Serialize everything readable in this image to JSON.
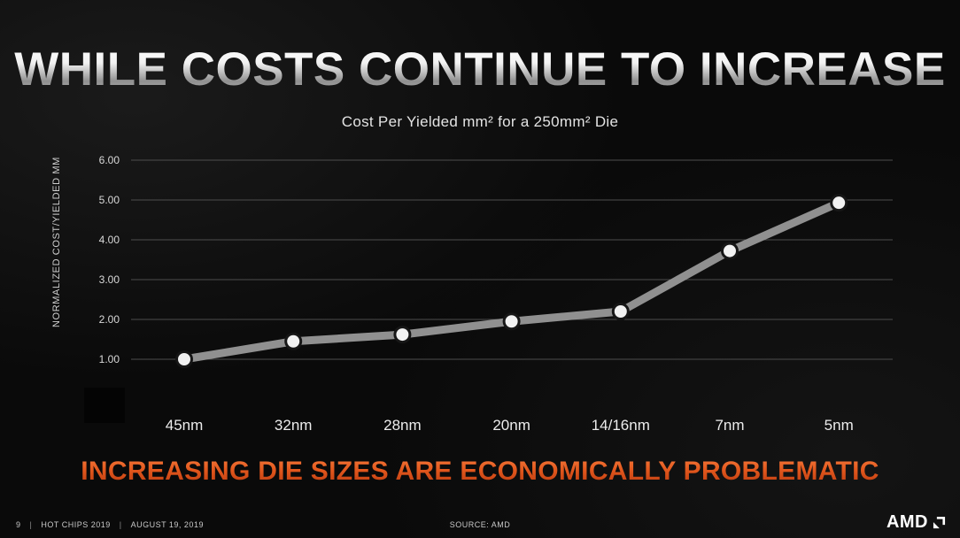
{
  "slide": {
    "title": "WHILE COSTS CONTINUE TO INCREASE",
    "tagline": "INCREASING DIE SIZES ARE ECONOMICALLY PROBLEMATIC"
  },
  "chart_data": {
    "type": "line",
    "title": "Cost Per Yielded mm² for a 250mm² Die",
    "categories": [
      "45nm",
      "32nm",
      "28nm",
      "20nm",
      "14/16nm",
      "7nm",
      "5nm"
    ],
    "values": [
      1.0,
      1.45,
      1.62,
      1.95,
      2.2,
      3.72,
      4.93
    ],
    "series_name": "Normalized cost per yielded mm",
    "xlabel": "",
    "ylabel": "NORMALIZED COST/YIELDED MM",
    "ylim": [
      0,
      6
    ],
    "yticks": [
      1,
      2,
      3,
      4,
      5,
      6
    ],
    "ytick_labels": [
      "1.00",
      "2.00",
      "3.00",
      "4.00",
      "5.00",
      "6.00"
    ],
    "grid": true,
    "legend": "none",
    "line_color": "#909090",
    "marker_fill": "#f2f2f2",
    "marker_stroke": "#161616",
    "gridline_color": "#4d4d4d",
    "tick_text_color": "#d9d9d9",
    "category_text_color": "#ececec"
  },
  "footer": {
    "page_number": "9",
    "divider": "|",
    "event": "HOT CHIPS 2019",
    "date": "AUGUST 19, 2019",
    "source": "SOURCE: AMD",
    "logo_text": "AMD"
  },
  "colors": {
    "accent_orange": "#e2571d",
    "title_silver": "#d9d9d9",
    "background": "#0a0a0a"
  }
}
